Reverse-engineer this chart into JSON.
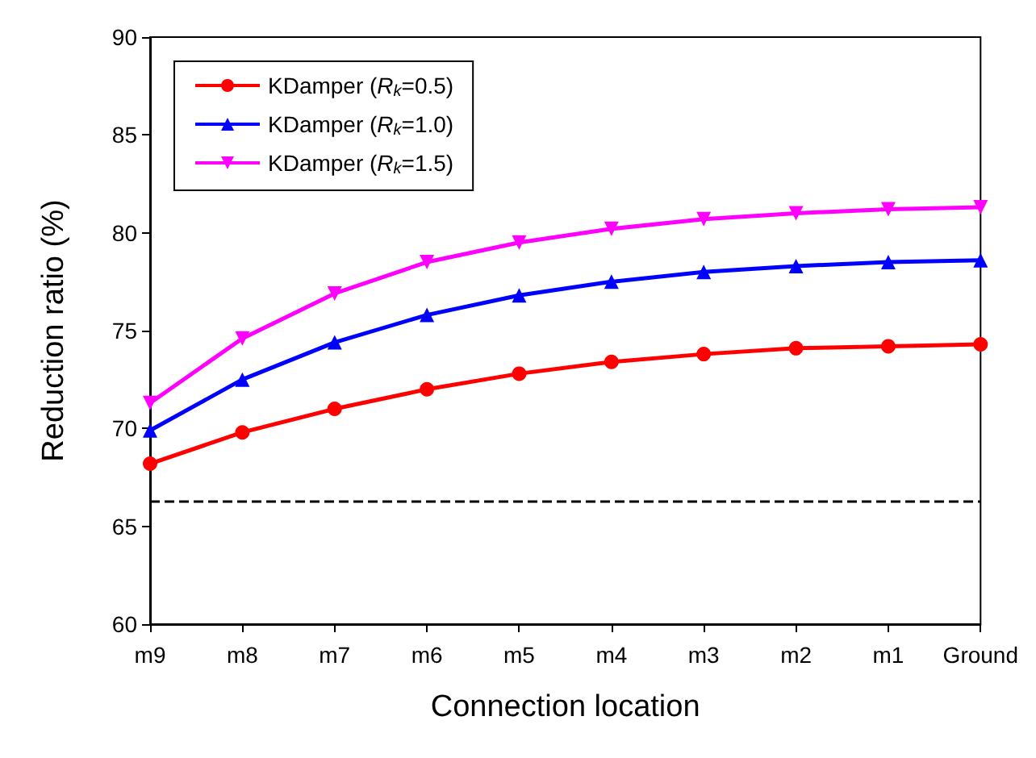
{
  "chart_data": {
    "type": "line",
    "xlabel": "Connection location",
    "ylabel": "Reduction ratio (%)",
    "categories": [
      "m9",
      "m8",
      "m7",
      "m6",
      "m5",
      "m4",
      "m3",
      "m2",
      "m1",
      "Ground"
    ],
    "series": [
      {
        "name": "KDamper (R$_{k}$=0.5)",
        "color": "#ff0000",
        "marker": "circle",
        "values": [
          68.2,
          69.8,
          71.0,
          72.0,
          72.8,
          73.4,
          73.8,
          74.1,
          74.2,
          74.3
        ]
      },
      {
        "name": "KDamper (R$_{k}$=1.0)",
        "color": "#0000ff",
        "marker": "triangle",
        "values": [
          69.9,
          72.5,
          74.4,
          75.8,
          76.8,
          77.5,
          78.0,
          78.3,
          78.5,
          78.6
        ]
      },
      {
        "name": "KDamper (R$_{k}$=1.5)",
        "color": "#ff00ff",
        "marker": "triangle-down",
        "values": [
          71.3,
          74.6,
          76.9,
          78.5,
          79.5,
          80.2,
          80.7,
          81.0,
          81.2,
          81.3
        ]
      }
    ],
    "ylim": [
      60,
      90
    ],
    "yticks": [
      60,
      65,
      70,
      75,
      80,
      85,
      90
    ],
    "grid": false,
    "legend": "top left",
    "ref_lines": [
      {
        "axis": "y",
        "value": 66.3,
        "color": "#000000",
        "line_style": "dashed"
      }
    ]
  }
}
